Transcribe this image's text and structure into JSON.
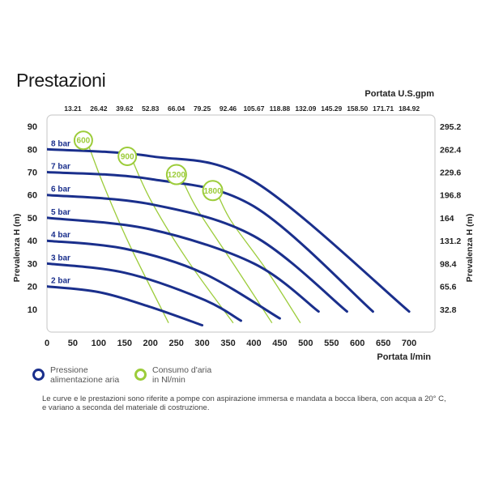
{
  "page": {
    "title": "Prestazioni"
  },
  "legend": {
    "pressure_line1": "Pressione",
    "pressure_line2": "alimentazione aria",
    "air_line1": "Consumo d'aria",
    "air_line2": "in Nl/min",
    "pressure_color": "#1a2f8c",
    "air_color": "#9ccc3a"
  },
  "footnote": {
    "line1": "Le curve e le prestazioni sono riferite a pompe con aspirazione immersa e mandata a bocca libera, con acqua a 20° C,",
    "line2": "e variano a seconda del materiale di costruzione."
  },
  "chart_data": {
    "type": "line",
    "title": "Prestazioni",
    "xlabel": "Portata  l/min",
    "ylabel": "Prevalenza H (m)",
    "x2label": "Portata U.S.gpm",
    "xlim": [
      0,
      750
    ],
    "ylim": [
      0,
      95
    ],
    "x_ticks": [
      0,
      50,
      100,
      150,
      200,
      250,
      300,
      350,
      400,
      450,
      500,
      550,
      600,
      650,
      700
    ],
    "y_ticks": [
      10,
      20,
      30,
      40,
      50,
      60,
      70,
      80,
      90
    ],
    "top_ticks": [
      "13.21",
      "26.42",
      "39.62",
      "52.83",
      "66.04",
      "79.25",
      "92.46",
      "105.67",
      "118.88",
      "132.09",
      "145.29",
      "158.50",
      "171.71",
      "184.92"
    ],
    "right_ticks": [
      "295.2",
      "262.4",
      "229.6",
      "196.8",
      "164",
      "131.2",
      "98.4",
      "65.6",
      "32.8"
    ],
    "grid": false,
    "legend_position": "bottom-left",
    "pressure_series": [
      {
        "name": "2 bar",
        "points": [
          [
            0,
            20
          ],
          [
            100,
            17.5
          ],
          [
            200,
            11
          ],
          [
            300,
            3
          ]
        ]
      },
      {
        "name": "3 bar",
        "points": [
          [
            0,
            30
          ],
          [
            150,
            26
          ],
          [
            300,
            14.5
          ],
          [
            375,
            5
          ]
        ]
      },
      {
        "name": "4 bar",
        "points": [
          [
            0,
            40
          ],
          [
            150,
            36.5
          ],
          [
            300,
            26
          ],
          [
            450,
            6
          ]
        ]
      },
      {
        "name": "5 bar",
        "points": [
          [
            0,
            50
          ],
          [
            200,
            45
          ],
          [
            400,
            30
          ],
          [
            525,
            9
          ]
        ]
      },
      {
        "name": "6 bar",
        "points": [
          [
            0,
            60
          ],
          [
            200,
            56
          ],
          [
            400,
            42
          ],
          [
            580,
            9
          ]
        ]
      },
      {
        "name": "7 bar",
        "points": [
          [
            0,
            70
          ],
          [
            200,
            67
          ],
          [
            400,
            55
          ],
          [
            630,
            9
          ]
        ]
      },
      {
        "name": "8 bar",
        "points": [
          [
            0,
            80
          ],
          [
            200,
            77
          ],
          [
            400,
            66
          ],
          [
            700,
            9
          ]
        ]
      }
    ],
    "air_series": [
      {
        "name": "600",
        "points": [
          [
            75,
            85
          ],
          [
            110,
            64
          ],
          [
            160,
            38
          ],
          [
            235,
            4
          ]
        ]
      },
      {
        "name": "900",
        "points": [
          [
            160,
            78
          ],
          [
            200,
            58
          ],
          [
            270,
            32
          ],
          [
            360,
            4
          ]
        ]
      },
      {
        "name": "1200",
        "points": [
          [
            255,
            70
          ],
          [
            290,
            54
          ],
          [
            360,
            30
          ],
          [
            435,
            4
          ]
        ]
      },
      {
        "name": "1800",
        "points": [
          [
            325,
            63
          ],
          [
            355,
            49
          ],
          [
            425,
            27
          ],
          [
            490,
            4
          ]
        ]
      }
    ]
  }
}
